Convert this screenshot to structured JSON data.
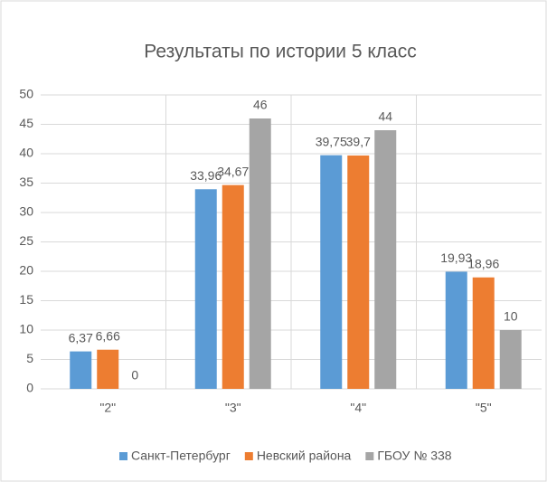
{
  "chart_data": {
    "type": "bar",
    "title": "Результаты по истории 5 класс",
    "categories": [
      "\"2\"",
      "\"3\"",
      "\"4\"",
      "\"5\""
    ],
    "series": [
      {
        "name": "Санкт-Петербург",
        "color": "#5b9bd5",
        "values": [
          6.37,
          33.96,
          39.75,
          19.93
        ],
        "value_labels": [
          "6,37",
          "33,96",
          "39,75",
          "19,93"
        ]
      },
      {
        "name": "Невский района",
        "color": "#ed7d31",
        "values": [
          6.66,
          34.67,
          39.7,
          18.96
        ],
        "value_labels": [
          "6,66",
          "34,67",
          "39,7",
          "18,96"
        ]
      },
      {
        "name": "ГБОУ № 338",
        "color": "#a5a5a5",
        "values": [
          0,
          46,
          44,
          10
        ],
        "value_labels": [
          "0",
          "46",
          "44",
          "10"
        ]
      }
    ],
    "ylim": [
      0,
      50
    ],
    "yticks": [
      0,
      5,
      10,
      15,
      20,
      25,
      30,
      35,
      40,
      45,
      50
    ],
    "grid": true,
    "legend": "bottom"
  }
}
